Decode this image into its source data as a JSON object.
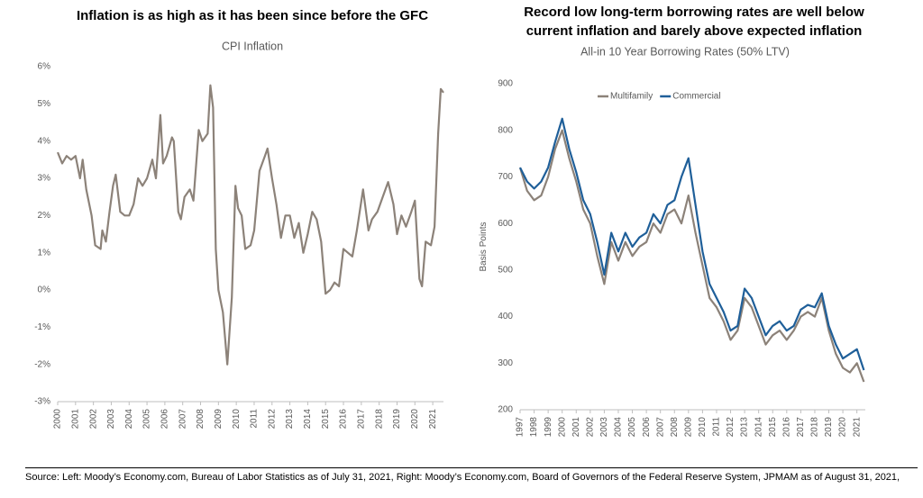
{
  "chart_data": [
    {
      "type": "line",
      "title": "Inflation is as high as it has been since before the GFC",
      "subtitle": "CPI Inflation",
      "x": [
        2000,
        2000.25,
        2000.5,
        2000.75,
        2001,
        2001.25,
        2001.4,
        2001.6,
        2001.9,
        2002.1,
        2002.4,
        2002.5,
        2002.7,
        2002.9,
        2003.1,
        2003.25,
        2003.5,
        2003.75,
        2004,
        2004.25,
        2004.5,
        2004.75,
        2005,
        2005.3,
        2005.5,
        2005.75,
        2005.9,
        2006.1,
        2006.4,
        2006.5,
        2006.75,
        2006.9,
        2007.1,
        2007.4,
        2007.6,
        2007.9,
        2008.1,
        2008.4,
        2008.55,
        2008.7,
        2008.85,
        2009,
        2009.25,
        2009.5,
        2009.75,
        2009.95,
        2010.1,
        2010.3,
        2010.5,
        2010.8,
        2011,
        2011.3,
        2011.6,
        2011.75,
        2012,
        2012.25,
        2012.5,
        2012.75,
        2013,
        2013.25,
        2013.5,
        2013.75,
        2014,
        2014.25,
        2014.5,
        2014.75,
        2015,
        2015.25,
        2015.5,
        2015.75,
        2016,
        2016.25,
        2016.5,
        2016.75,
        2017.1,
        2017.4,
        2017.6,
        2017.9,
        2018.2,
        2018.5,
        2018.8,
        2019,
        2019.25,
        2019.5,
        2019.8,
        2020,
        2020.25,
        2020.4,
        2020.6,
        2020.9,
        2021.1,
        2021.3,
        2021.45,
        2021.6
      ],
      "values": [
        3.7,
        3.4,
        3.6,
        3.5,
        3.6,
        3.0,
        3.5,
        2.7,
        2.0,
        1.2,
        1.1,
        1.6,
        1.3,
        2.1,
        2.8,
        3.1,
        2.1,
        2.0,
        2.0,
        2.3,
        3.0,
        2.8,
        3.0,
        3.5,
        3.0,
        4.7,
        3.4,
        3.6,
        4.1,
        4.0,
        2.1,
        1.9,
        2.5,
        2.7,
        2.4,
        4.3,
        4.0,
        4.2,
        5.5,
        4.9,
        1.1,
        0.0,
        -0.6,
        -2.0,
        -0.2,
        2.8,
        2.2,
        2.0,
        1.1,
        1.2,
        1.6,
        3.2,
        3.6,
        3.8,
        3.0,
        2.3,
        1.4,
        2.0,
        2.0,
        1.4,
        1.8,
        1.0,
        1.5,
        2.1,
        1.9,
        1.3,
        -0.1,
        0.0,
        0.2,
        0.1,
        1.1,
        1.0,
        0.9,
        1.6,
        2.7,
        1.6,
        1.9,
        2.1,
        2.5,
        2.9,
        2.3,
        1.5,
        2.0,
        1.7,
        2.1,
        2.4,
        0.3,
        0.1,
        1.3,
        1.2,
        1.7,
        4.2,
        5.4,
        5.3
      ],
      "color": "#8c8279",
      "xlim": [
        2000,
        2021.6
      ],
      "xticks": [
        2000,
        2001,
        2002,
        2003,
        2004,
        2005,
        2006,
        2007,
        2008,
        2009,
        2010,
        2011,
        2012,
        2013,
        2014,
        2015,
        2016,
        2017,
        2018,
        2019,
        2020,
        2021
      ],
      "ylim": [
        -3,
        6
      ],
      "yticks": [
        {
          "value": -3,
          "label": "-3%"
        },
        {
          "value": -2,
          "label": "-2%"
        },
        {
          "value": -1,
          "label": "-1%"
        },
        {
          "value": 0,
          "label": "0%"
        },
        {
          "value": 1,
          "label": "1%"
        },
        {
          "value": 2,
          "label": "2%"
        },
        {
          "value": 3,
          "label": "3%"
        },
        {
          "value": 4,
          "label": "4%"
        },
        {
          "value": 5,
          "label": "5%"
        },
        {
          "value": 6,
          "label": "6%"
        }
      ]
    },
    {
      "type": "line",
      "title": "Record low long-term borrowing rates are well below current inflation and barely above expected inflation",
      "subtitle": "All-in 10 Year Borrowing Rates (50% LTV)",
      "y_label": "Basis Points",
      "x": [
        1997,
        1997.5,
        1998,
        1998.5,
        1999,
        1999.5,
        2000,
        2000.5,
        2001,
        2001.5,
        2002,
        2002.5,
        2003,
        2003.5,
        2004,
        2004.5,
        2005,
        2005.5,
        2006,
        2006.5,
        2007,
        2007.5,
        2008,
        2008.5,
        2009,
        2009.5,
        2010,
        2010.5,
        2011,
        2011.5,
        2012,
        2012.5,
        2013,
        2013.5,
        2014,
        2014.5,
        2015,
        2015.5,
        2016,
        2016.5,
        2017,
        2017.5,
        2018,
        2018.5,
        2019,
        2019.5,
        2020,
        2020.5,
        2021,
        2021.5
      ],
      "series": [
        {
          "name": "Multifamily",
          "color": "#8c8279",
          "values": [
            720,
            670,
            650,
            660,
            700,
            760,
            800,
            740,
            690,
            630,
            600,
            530,
            470,
            560,
            520,
            560,
            530,
            550,
            560,
            600,
            580,
            620,
            630,
            600,
            660,
            580,
            510,
            440,
            420,
            390,
            350,
            370,
            440,
            420,
            380,
            340,
            360,
            370,
            350,
            370,
            400,
            410,
            400,
            440,
            370,
            320,
            290,
            280,
            300,
            260
          ]
        },
        {
          "name": "Commercial",
          "color": "#1f5f99",
          "values": [
            720,
            690,
            675,
            690,
            720,
            775,
            825,
            760,
            710,
            650,
            620,
            560,
            490,
            580,
            540,
            580,
            550,
            570,
            580,
            620,
            600,
            640,
            650,
            700,
            740,
            640,
            540,
            470,
            440,
            410,
            370,
            380,
            460,
            440,
            400,
            360,
            380,
            390,
            370,
            380,
            415,
            425,
            420,
            450,
            380,
            340,
            310,
            320,
            330,
            285
          ]
        }
      ],
      "legend": "top-left",
      "xlim": [
        1997,
        2021.6
      ],
      "xticks": [
        1997,
        1998,
        1999,
        2000,
        2001,
        2002,
        2003,
        2004,
        2005,
        2006,
        2007,
        2008,
        2009,
        2010,
        2011,
        2012,
        2013,
        2014,
        2015,
        2016,
        2017,
        2018,
        2019,
        2020,
        2021
      ],
      "ylim": [
        200,
        900
      ],
      "yticks": [
        200,
        300,
        400,
        500,
        600,
        700,
        800,
        900
      ]
    }
  ],
  "source": "Source: Left: Moody’s Economy.com, Bureau of Labor Statistics as of July 31, 2021, Right: Moody’s Economy.com, Board of Governors of the Federal Reserve System, JPMAM as of August 31, 2021,"
}
